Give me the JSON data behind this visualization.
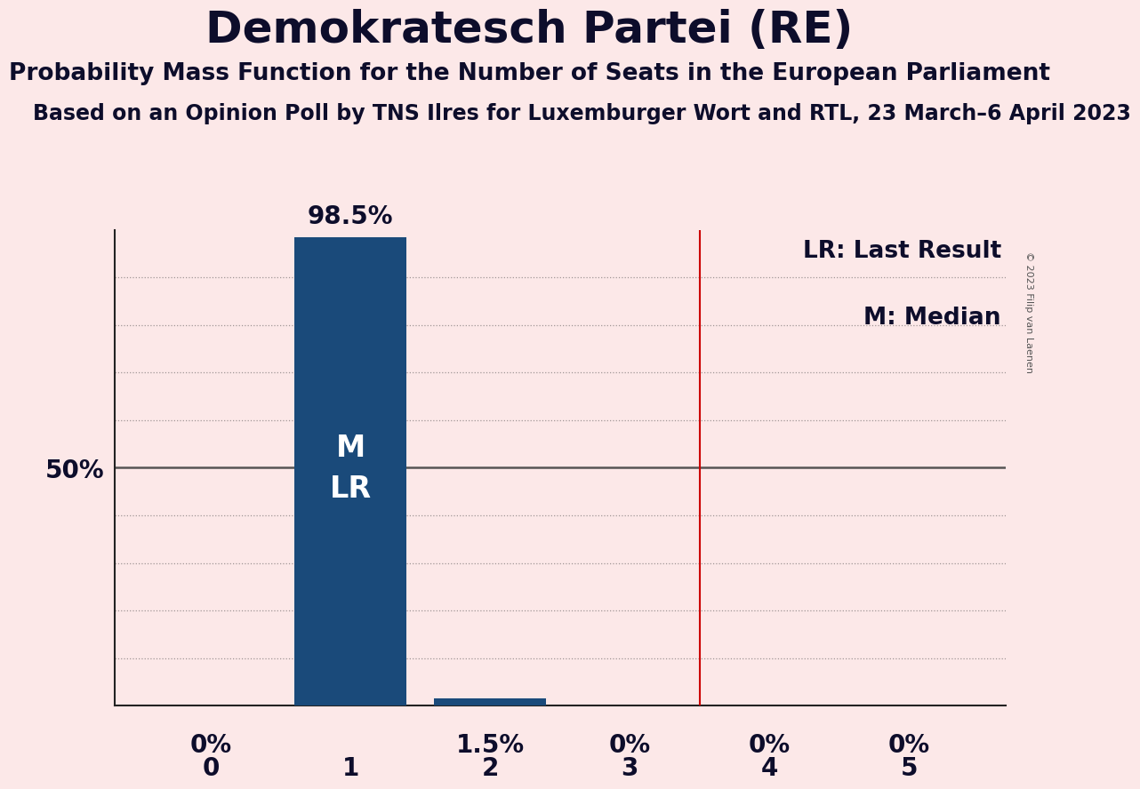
{
  "title": "Demokratesch Partei (RE)",
  "subtitle": "Probability Mass Function for the Number of Seats in the European Parliament",
  "source_line": "Based on an Opinion Poll by TNS Ilres for Luxemburger Wort and RTL, 23 March–6 April 2023",
  "copyright": "© 2023 Filip van Laenen",
  "categories": [
    0,
    1,
    2,
    3,
    4,
    5
  ],
  "values": [
    0.0,
    0.985,
    0.015,
    0.0,
    0.0,
    0.0
  ],
  "bar_color": "#1a4a7a",
  "background_color": "#fce8e8",
  "bar_labels": [
    "0%",
    "98.5%",
    "1.5%",
    "0%",
    "0%",
    "0%"
  ],
  "bar_label_color_dark": "#0d0d2b",
  "bar_label_color_white": "#ffffff",
  "ylim": [
    0,
    1.0
  ],
  "red_line_x": 3.5,
  "red_line_color": "#cc0000",
  "legend_lr": "LR: Last Result",
  "legend_m": "M: Median",
  "bar_annotation_x1": "M\nLR",
  "grid_color": "#444444",
  "title_fontsize": 36,
  "subtitle_fontsize": 19,
  "source_fontsize": 17,
  "bar_label_fontsize": 20,
  "axis_tick_fontsize": 20,
  "legend_fontsize": 19,
  "annotation_fontsize": 24
}
